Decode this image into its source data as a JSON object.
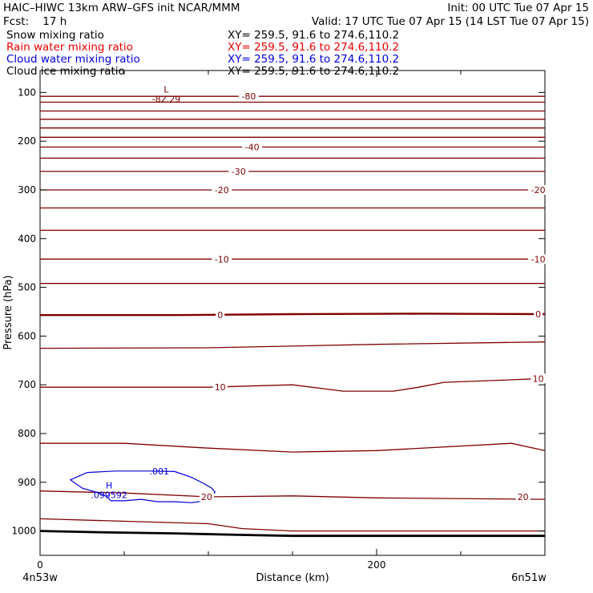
{
  "header": {
    "title": "HAIC–HIWC 13km ARW–GFS init   NCAR/MMM",
    "init": "Init: 00 UTC Tue 07 Apr 15",
    "fcst": "Fcst:    17 h",
    "valid": "Valid: 17 UTC Tue 07 Apr 15 (14 LST Tue 07 Apr 15)"
  },
  "fields": [
    {
      "name": "Snow mixing ratio",
      "xy": "XY= 259.5, 91.6 to 274.6,110.2",
      "color": "#000000"
    },
    {
      "name": "Rain water mixing ratio",
      "xy": "XY= 259.5, 91.6 to 274.6,110.2",
      "color": "#ee0000"
    },
    {
      "name": "Cloud water mixing ratio",
      "xy": "XY= 259.5, 91.6 to 274.6,110.2",
      "color": "#0000dd"
    },
    {
      "name": "Cloud ice mixing ratio",
      "xy": "XY= 259.5, 91.6 to 274.6,110.2",
      "color": "#000000"
    }
  ],
  "colors": {
    "temperature": "#800000",
    "cloud_water": "#0000dd",
    "ground": "#000000"
  },
  "chart_data": {
    "type": "line",
    "xlabel": "Distance (km)",
    "ylabel": "Pressure (hPa)",
    "xlim": [
      0,
      300
    ],
    "ylim": [
      1050,
      55
    ],
    "x_ticks": [
      0,
      200
    ],
    "x_minor_ticks": [
      50,
      100,
      150,
      250,
      300
    ],
    "y_ticks": [
      100,
      200,
      300,
      400,
      500,
      600,
      700,
      800,
      900,
      1000
    ],
    "x_endpoints": {
      "left": "4n53w",
      "right": "6n51w"
    },
    "temperature_lines": [
      {
        "x": [
          0,
          300
        ],
        "y": [
          108,
          108
        ]
      },
      {
        "x": [
          0,
          300
        ],
        "y": [
          120,
          120
        ]
      },
      {
        "x": [
          0,
          300
        ],
        "y": [
          138,
          138
        ]
      },
      {
        "x": [
          0,
          300
        ],
        "y": [
          155,
          155
        ]
      },
      {
        "x": [
          0,
          300
        ],
        "y": [
          173,
          173
        ]
      },
      {
        "x": [
          0,
          300
        ],
        "y": [
          192,
          192
        ]
      },
      {
        "x": [
          0,
          300
        ],
        "y": [
          212,
          212
        ]
      },
      {
        "x": [
          0,
          300
        ],
        "y": [
          235,
          235
        ]
      },
      {
        "x": [
          0,
          300
        ],
        "y": [
          262,
          262
        ]
      },
      {
        "x": [
          0,
          300
        ],
        "y": [
          300,
          300
        ]
      },
      {
        "x": [
          0,
          300
        ],
        "y": [
          337,
          337
        ]
      },
      {
        "x": [
          0,
          300
        ],
        "y": [
          383,
          383
        ]
      },
      {
        "x": [
          0,
          300
        ],
        "y": [
          442,
          442
        ]
      },
      {
        "x": [
          0,
          300
        ],
        "y": [
          492,
          492
        ]
      },
      {
        "x": [
          0,
          80,
          150,
          230,
          300
        ],
        "y": [
          557,
          557,
          555,
          554,
          555
        ],
        "emphasis": true
      },
      {
        "x": [
          0,
          100,
          200,
          300
        ],
        "y": [
          625,
          624,
          617,
          612
        ]
      },
      {
        "x": [
          0,
          100,
          150,
          180,
          210,
          225,
          240,
          300
        ],
        "y": [
          705,
          705,
          700,
          713,
          713,
          705,
          695,
          687
        ]
      },
      {
        "x": [
          0,
          50,
          100,
          150,
          200,
          280,
          300
        ],
        "y": [
          820,
          820,
          830,
          838,
          835,
          820,
          835
        ]
      },
      {
        "x": [
          0,
          50,
          100,
          150,
          200,
          300
        ],
        "y": [
          918,
          922,
          930,
          928,
          932,
          935
        ]
      },
      {
        "x": [
          0,
          100,
          120,
          150,
          200,
          300
        ],
        "y": [
          975,
          985,
          995,
          1000,
          1000,
          1000
        ]
      }
    ],
    "ground_line": {
      "x": [
        0,
        40,
        80,
        120,
        150,
        200,
        300
      ],
      "y": [
        1000,
        1003,
        1005,
        1008,
        1010,
        1010,
        1010
      ]
    },
    "cloud_water_contour": {
      "value_label": ".001",
      "x": [
        18,
        28,
        45,
        65,
        80,
        90,
        97,
        102,
        104,
        100,
        90,
        80,
        70,
        60,
        50,
        42,
        40,
        35,
        25,
        18
      ],
      "y": [
        895,
        880,
        877,
        877,
        878,
        890,
        902,
        912,
        920,
        937,
        942,
        940,
        940,
        935,
        938,
        938,
        930,
        922,
        912,
        895
      ]
    },
    "temperature_labels": [
      {
        "text": "-80",
        "x": 124,
        "y": 108
      },
      {
        "text": "-40",
        "x": 126,
        "y": 212
      },
      {
        "text": "-30",
        "x": 118,
        "y": 262
      },
      {
        "text": "-20",
        "x": 108,
        "y": 300
      },
      {
        "text": "-20",
        "x": 296,
        "y": 300
      },
      {
        "text": "-10",
        "x": 108,
        "y": 442
      },
      {
        "text": "-10",
        "x": 296,
        "y": 442
      },
      {
        "text": "0",
        "x": 107,
        "y": 557
      },
      {
        "text": "0",
        "x": 296,
        "y": 555
      },
      {
        "text": "10",
        "x": 107,
        "y": 705
      },
      {
        "text": "10",
        "x": 296,
        "y": 687
      },
      {
        "text": "20",
        "x": 99,
        "y": 930
      },
      {
        "text": "20",
        "x": 287,
        "y": 930
      }
    ],
    "extrema": [
      {
        "symbol": "L",
        "value": "-82.29",
        "x": 75,
        "y": 100,
        "color": "#800000"
      },
      {
        "symbol": "H",
        "value": ".099592",
        "x": 41,
        "y": 913,
        "color": "#0000dd"
      }
    ]
  }
}
